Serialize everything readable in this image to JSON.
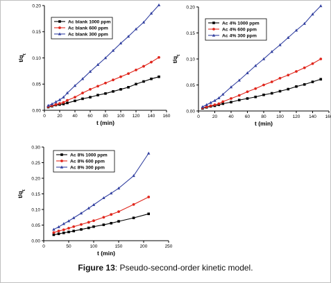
{
  "caption": {
    "label": "Figure 13",
    "text": ": Pseudo-second-order kinetic model."
  },
  "chart_data": [
    {
      "type": "line",
      "xlabel": "t (min)",
      "ylabel": "t/q_t",
      "xlim": [
        0,
        160
      ],
      "ylim": [
        0.0,
        0.2
      ],
      "x_ticks": [
        0,
        20,
        40,
        60,
        80,
        100,
        120,
        140,
        160
      ],
      "y_ticks": [
        0.0,
        0.05,
        0.1,
        0.15,
        0.2
      ],
      "legend_position": "top-left",
      "series": [
        {
          "name": "Ac blank 1000 ppm",
          "color": "#000000",
          "marker": "square",
          "x": [
            5,
            10,
            15,
            20,
            25,
            30,
            40,
            50,
            60,
            70,
            80,
            90,
            100,
            110,
            120,
            130,
            140,
            150
          ],
          "values": [
            0.006,
            0.008,
            0.01,
            0.011,
            0.012,
            0.014,
            0.018,
            0.022,
            0.025,
            0.029,
            0.032,
            0.036,
            0.04,
            0.044,
            0.05,
            0.055,
            0.06,
            0.064
          ]
        },
        {
          "name": "Ac blank 600 ppm",
          "color": "#e0261c",
          "marker": "circle",
          "x": [
            5,
            10,
            15,
            20,
            25,
            30,
            40,
            50,
            60,
            70,
            80,
            90,
            100,
            110,
            120,
            130,
            140,
            150
          ],
          "values": [
            0.007,
            0.009,
            0.011,
            0.013,
            0.015,
            0.019,
            0.025,
            0.033,
            0.04,
            0.046,
            0.052,
            0.058,
            0.064,
            0.07,
            0.077,
            0.084,
            0.092,
            0.101
          ]
        },
        {
          "name": "Ac blank 300 ppm",
          "color": "#3240a0",
          "marker": "triangle",
          "x": [
            5,
            10,
            15,
            20,
            25,
            30,
            40,
            50,
            60,
            70,
            80,
            90,
            100,
            110,
            120,
            130,
            140,
            150
          ],
          "values": [
            0.009,
            0.012,
            0.016,
            0.02,
            0.025,
            0.033,
            0.047,
            0.06,
            0.074,
            0.087,
            0.1,
            0.114,
            0.128,
            0.141,
            0.155,
            0.168,
            0.185,
            0.201
          ]
        }
      ]
    },
    {
      "type": "line",
      "xlabel": "t (min)",
      "ylabel": "t/q_t",
      "xlim": [
        0,
        160
      ],
      "ylim": [
        0.0,
        0.2
      ],
      "x_ticks": [
        0,
        20,
        40,
        60,
        80,
        100,
        120,
        140,
        160
      ],
      "y_ticks": [
        0.0,
        0.05,
        0.1,
        0.15,
        0.2
      ],
      "legend_position": "top-left",
      "series": [
        {
          "name": "Ac 4% 1000 ppm",
          "color": "#000000",
          "marker": "square",
          "x": [
            5,
            10,
            15,
            20,
            25,
            30,
            40,
            50,
            60,
            70,
            80,
            90,
            100,
            110,
            120,
            130,
            140,
            150
          ],
          "values": [
            0.005,
            0.007,
            0.009,
            0.01,
            0.012,
            0.014,
            0.017,
            0.021,
            0.024,
            0.027,
            0.031,
            0.034,
            0.038,
            0.042,
            0.047,
            0.051,
            0.056,
            0.061
          ]
        },
        {
          "name": "Ac 4% 600 ppm",
          "color": "#e0261c",
          "marker": "circle",
          "x": [
            5,
            10,
            15,
            20,
            25,
            30,
            40,
            50,
            60,
            70,
            80,
            90,
            100,
            110,
            120,
            130,
            140,
            150
          ],
          "values": [
            0.006,
            0.008,
            0.01,
            0.012,
            0.014,
            0.018,
            0.024,
            0.03,
            0.037,
            0.043,
            0.05,
            0.056,
            0.063,
            0.069,
            0.076,
            0.083,
            0.091,
            0.1
          ]
        },
        {
          "name": "Ac 4% 300 ppm",
          "color": "#3240a0",
          "marker": "triangle",
          "x": [
            5,
            10,
            15,
            20,
            25,
            30,
            40,
            50,
            60,
            70,
            80,
            90,
            100,
            110,
            120,
            130,
            140,
            150
          ],
          "values": [
            0.008,
            0.012,
            0.016,
            0.02,
            0.025,
            0.032,
            0.046,
            0.059,
            0.073,
            0.087,
            0.1,
            0.114,
            0.127,
            0.141,
            0.155,
            0.168,
            0.186,
            0.202
          ]
        }
      ]
    },
    {
      "type": "line",
      "xlabel": "t (min)",
      "ylabel": "t/q_t",
      "xlim": [
        0,
        250
      ],
      "ylim": [
        0.0,
        0.3
      ],
      "x_ticks": [
        0,
        50,
        100,
        150,
        200,
        250
      ],
      "y_ticks": [
        0.0,
        0.05,
        0.1,
        0.15,
        0.2,
        0.25,
        0.3
      ],
      "legend_position": "top-left",
      "series": [
        {
          "name": "Ac 8% 1000 ppm",
          "color": "#000000",
          "marker": "square",
          "x": [
            20,
            30,
            40,
            50,
            60,
            75,
            90,
            100,
            120,
            135,
            150,
            180,
            210
          ],
          "values": [
            0.019,
            0.022,
            0.025,
            0.028,
            0.031,
            0.036,
            0.041,
            0.045,
            0.051,
            0.056,
            0.062,
            0.073,
            0.086
          ]
        },
        {
          "name": "Ac 8% 600 ppm",
          "color": "#e0261c",
          "marker": "circle",
          "x": [
            20,
            30,
            40,
            50,
            60,
            75,
            90,
            100,
            120,
            135,
            150,
            180,
            210
          ],
          "values": [
            0.026,
            0.031,
            0.035,
            0.04,
            0.045,
            0.052,
            0.059,
            0.064,
            0.075,
            0.084,
            0.093,
            0.116,
            0.14
          ]
        },
        {
          "name": "Ac 8% 300 ppm",
          "color": "#3240a0",
          "marker": "triangle",
          "x": [
            20,
            30,
            40,
            50,
            60,
            75,
            90,
            100,
            120,
            135,
            150,
            180,
            210
          ],
          "values": [
            0.036,
            0.044,
            0.054,
            0.063,
            0.073,
            0.088,
            0.104,
            0.115,
            0.137,
            0.152,
            0.168,
            0.208,
            0.28
          ]
        }
      ]
    }
  ]
}
